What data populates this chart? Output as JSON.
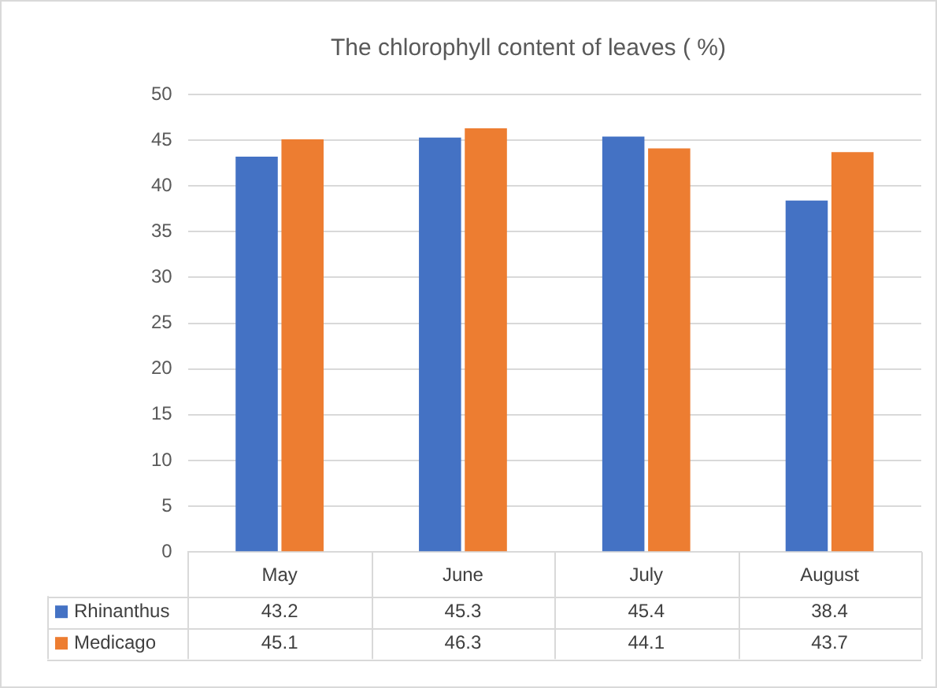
{
  "chart_data": {
    "type": "bar",
    "title": "The chlorophyll content of leaves ( %)",
    "categories": [
      "May",
      "June",
      "July",
      "August"
    ],
    "series": [
      {
        "name": "Rhinanthus",
        "color": "#4472c4",
        "values": [
          43.2,
          45.3,
          45.4,
          38.4
        ]
      },
      {
        "name": "Medicago",
        "color": "#ed7d31",
        "values": [
          45.1,
          46.3,
          44.1,
          43.7
        ]
      }
    ],
    "ylim": [
      0,
      50
    ],
    "yticks": [
      0,
      5,
      10,
      15,
      20,
      25,
      30,
      35,
      40,
      45,
      50
    ],
    "grid": "y",
    "legend": "bottom",
    "data_labels": true
  }
}
